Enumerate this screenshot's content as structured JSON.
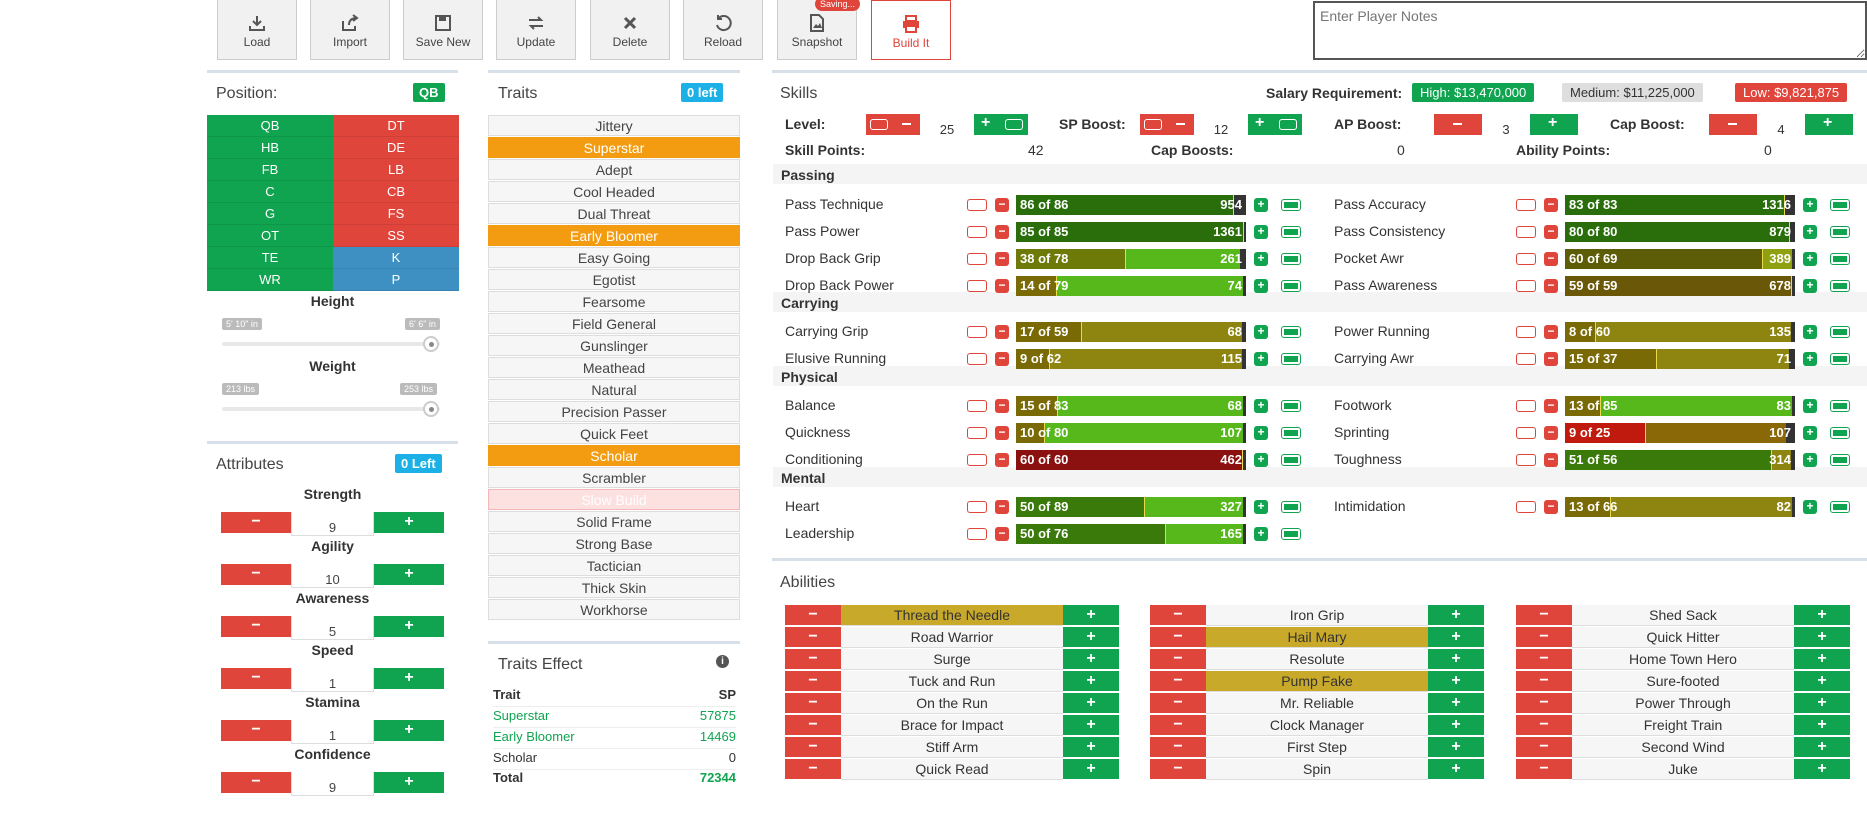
{
  "toolbar": {
    "buttons": [
      "Load",
      "Import",
      "Save New",
      "Update",
      "Delete",
      "Reload",
      "Snapshot",
      "Build It"
    ],
    "saving_badge": "Saving...",
    "notes_placeholder": "Enter Player Notes"
  },
  "position": {
    "title": "Position:",
    "selected": "QB",
    "left": [
      "QB",
      "HB",
      "FB",
      "C",
      "G",
      "OT",
      "TE",
      "WR"
    ],
    "right": [
      "DT",
      "DE",
      "LB",
      "CB",
      "FS",
      "SS",
      "K",
      "P"
    ],
    "height_label": "Height",
    "height_min": "5' 10\" in",
    "height_max": "6' 6\" in",
    "weight_label": "Weight",
    "weight_min": "213 lbs",
    "weight_max": "253 lbs"
  },
  "attributes": {
    "title": "Attributes",
    "left_badge": "0 Left",
    "items": [
      {
        "name": "Strength",
        "value": "9"
      },
      {
        "name": "Agility",
        "value": "10"
      },
      {
        "name": "Awareness",
        "value": "5"
      },
      {
        "name": "Speed",
        "value": "1"
      },
      {
        "name": "Stamina",
        "value": "1"
      },
      {
        "name": "Confidence",
        "value": "9"
      }
    ]
  },
  "traits": {
    "title": "Traits",
    "left_badge": "0 left",
    "items": [
      "Jittery",
      "Superstar",
      "Adept",
      "Cool Headed",
      "Dual Threat",
      "Early Bloomer",
      "Easy Going",
      "Egotist",
      "Fearsome",
      "Field General",
      "Gunslinger",
      "Meathead",
      "Natural",
      "Precision Passer",
      "Quick Feet",
      "Scholar",
      "Scrambler",
      "Slow Build",
      "Solid Frame",
      "Strong Base",
      "Tactician",
      "Thick Skin",
      "Workhorse"
    ],
    "effect_title": "Traits Effect",
    "effect_header": {
      "trait": "Trait",
      "sp": "SP"
    },
    "effects": [
      {
        "trait": "Superstar",
        "sp": "57875"
      },
      {
        "trait": "Early Bloomer",
        "sp": "14469"
      },
      {
        "trait": "Scholar",
        "sp": "0"
      }
    ],
    "total_label": "Total",
    "total": "72344"
  },
  "skills": {
    "title": "Skills",
    "salary_label": "Salary Requirement:",
    "salary_high": "High: $13,470,000",
    "salary_medium": "Medium: $11,225,000",
    "salary_low": "Low: $9,821,875",
    "level_label": "Level:",
    "level_value": "25",
    "sp_boost_label": "SP Boost:",
    "sp_boost_value": "12",
    "ap_boost_label": "AP Boost:",
    "ap_boost_value": "3",
    "cap_boost_label": "Cap Boost:",
    "cap_boost_value": "4",
    "skill_points_label": "Skill Points:",
    "skill_points": "42",
    "cap_boosts_label": "Cap Boosts:",
    "cap_boosts": "0",
    "ability_points_label": "Ability Points:",
    "ability_points": "0",
    "groups": {
      "passing": "Passing",
      "carrying": "Carrying",
      "physical": "Physical",
      "mental": "Mental"
    },
    "rows": [
      {
        "name": "Pass Technique",
        "label": "86 of 86",
        "value": "954",
        "level": 86,
        "cap": 86,
        "max": 91
      },
      {
        "name": "Pass Power",
        "label": "85 of 85",
        "value": "1361",
        "level": 85,
        "cap": 85,
        "max": 86
      },
      {
        "name": "Drop Back Grip",
        "label": "38 of 78",
        "value": "261",
        "level": 38,
        "cap": 78,
        "max": 80
      },
      {
        "name": "Drop Back Power",
        "label": "14 of 79",
        "value": "74",
        "level": 14,
        "cap": 79,
        "max": 80
      },
      {
        "name": "Carrying Grip",
        "label": "17 of 59",
        "value": "68",
        "level": 17,
        "cap": 59,
        "max": 60
      },
      {
        "name": "Elusive Running",
        "label": "9 of 62",
        "value": "115",
        "level": 9,
        "cap": 62,
        "max": 63
      },
      {
        "name": "Balance",
        "label": "15 of 83",
        "value": "68",
        "level": 15,
        "cap": 83,
        "max": 84
      },
      {
        "name": "Quickness",
        "label": "10 of 80",
        "value": "107",
        "level": 10,
        "cap": 80,
        "max": 81
      },
      {
        "name": "Conditioning",
        "label": "60 of 60",
        "value": "462",
        "level": 60,
        "cap": 60,
        "max": 61
      },
      {
        "name": "Heart",
        "label": "50 of 89",
        "value": "327",
        "level": 50,
        "cap": 89,
        "max": 90
      },
      {
        "name": "Leadership",
        "label": "50 of 76",
        "value": "165",
        "level": 50,
        "cap": 76,
        "max": 77
      }
    ],
    "rows_right": [
      {
        "name": "Pass Accuracy",
        "label": "83 of 83",
        "value": "1316",
        "level": 83,
        "cap": 83,
        "max": 87
      },
      {
        "name": "Pass Consistency",
        "label": "80 of 80",
        "value": "879",
        "level": 80,
        "cap": 80,
        "max": 82
      },
      {
        "name": "Pocket Awr",
        "label": "60 of 69",
        "value": "389",
        "level": 60,
        "cap": 69,
        "max": 70
      },
      {
        "name": "Pass Awareness",
        "label": "59 of 59",
        "value": "678",
        "level": 59,
        "cap": 59,
        "max": 60
      },
      {
        "name": "Power Running",
        "label": "8 of 60",
        "value": "135",
        "level": 8,
        "cap": 60,
        "max": 61
      },
      {
        "name": "Carrying Awr",
        "label": "15 of 37",
        "value": "71",
        "level": 15,
        "cap": 37,
        "max": 38
      },
      {
        "name": "Footwork",
        "label": "13 of 85",
        "value": "83",
        "level": 13,
        "cap": 85,
        "max": 86
      },
      {
        "name": "Sprinting",
        "label": "9 of 25",
        "value": "107",
        "level": 9,
        "cap": 25,
        "max": 26
      },
      {
        "name": "Toughness",
        "label": "51 of 56",
        "value": "314",
        "level": 51,
        "cap": 56,
        "max": 57
      },
      {
        "name": "Intimidation",
        "label": "13 of 66",
        "value": "82",
        "level": 13,
        "cap": 66,
        "max": 67
      }
    ]
  },
  "abilities": {
    "title": "Abilities",
    "col1": [
      "Thread the Needle",
      "Road Warrior",
      "Surge",
      "Tuck and Run",
      "On the Run",
      "Brace for Impact",
      "Stiff Arm",
      "Quick Read"
    ],
    "col2": [
      "Iron Grip",
      "Hail Mary",
      "Resolute",
      "Pump Fake",
      "Mr. Reliable",
      "Clock Manager",
      "First Step",
      "Spin"
    ],
    "col3": [
      "Shed Sack",
      "Quick Hitter",
      "Home Town Hero",
      "Sure-footed",
      "Power Through",
      "Freight Train",
      "Second Wind",
      "Juke"
    ]
  }
}
